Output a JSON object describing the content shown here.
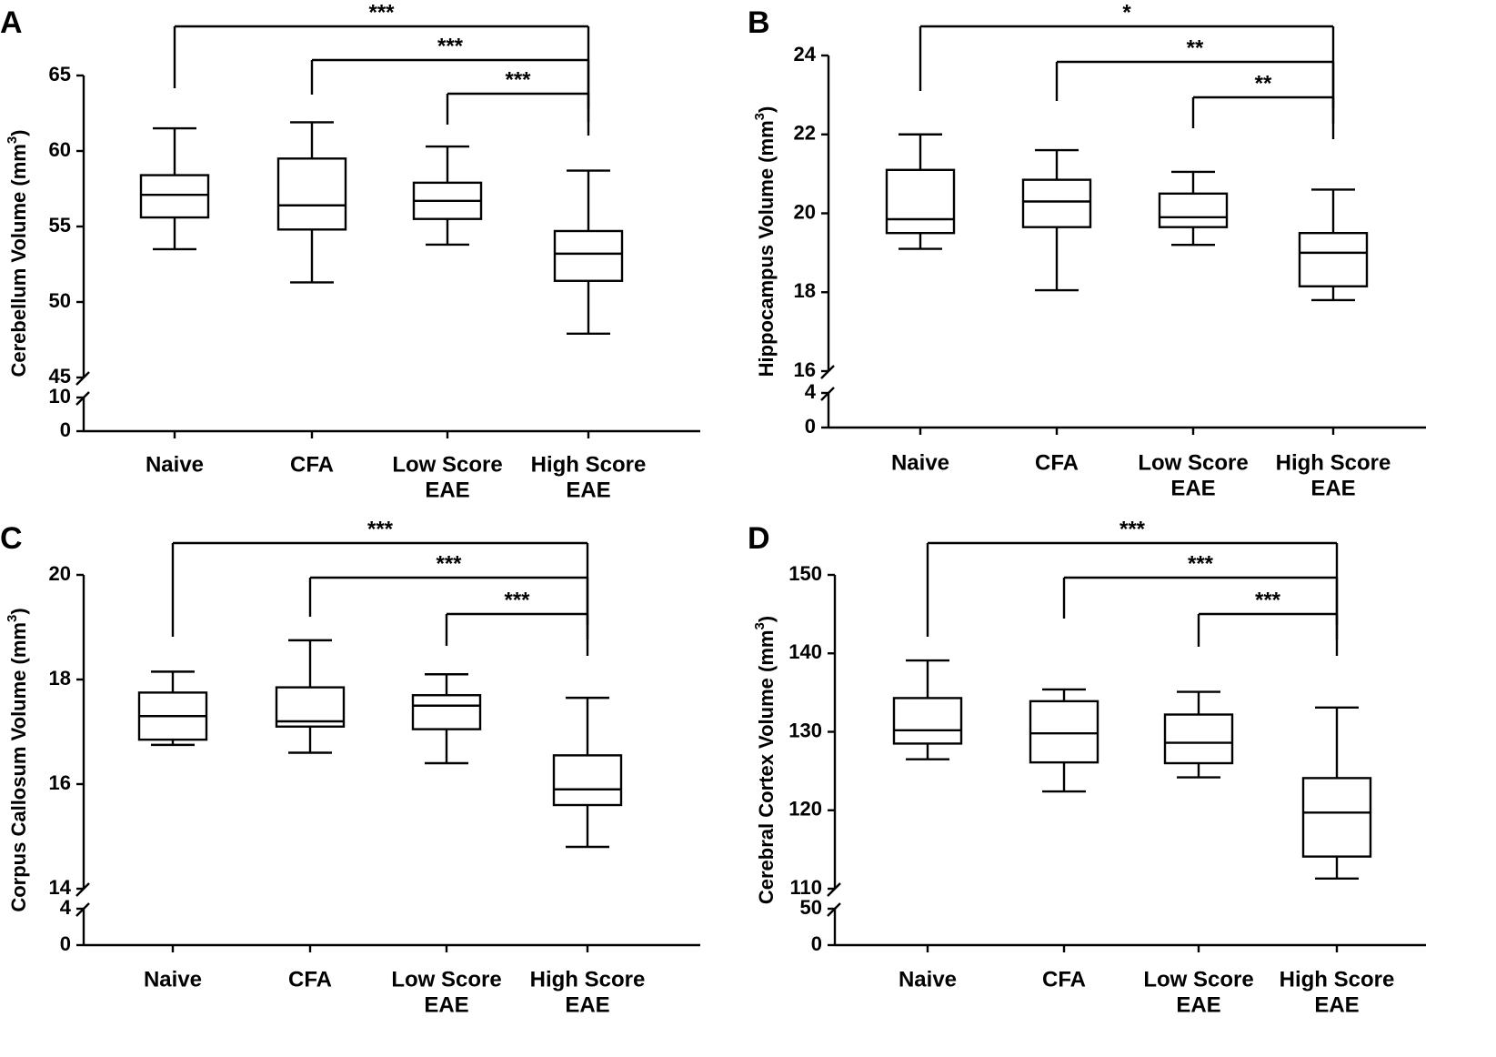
{
  "chart_data": [
    {
      "type": "box",
      "panel": "A",
      "ylabel": "Cerebellum Volume (mm",
      "ylabel_sup": "3",
      "ylabel_close": ")",
      "categories": [
        [
          "Naive"
        ],
        [
          "CFA"
        ],
        [
          "Low Score",
          "EAE"
        ],
        [
          "High Score",
          "EAE"
        ]
      ],
      "ylim": [
        45,
        65
      ],
      "yticks": [
        45,
        50,
        55,
        60,
        65
      ],
      "lower_segment": {
        "ylim": [
          0,
          10
        ],
        "yticks": [
          0,
          10
        ]
      },
      "boxes": [
        {
          "min": 53.5,
          "q1": 55.6,
          "median": 57.1,
          "q3": 58.4,
          "max": 61.5
        },
        {
          "min": 51.3,
          "q1": 54.8,
          "median": 56.4,
          "q3": 59.5,
          "max": 61.9
        },
        {
          "min": 53.8,
          "q1": 55.5,
          "median": 56.7,
          "q3": 57.9,
          "max": 60.3
        },
        {
          "min": 47.9,
          "q1": 51.4,
          "median": 53.2,
          "q3": 54.7,
          "max": 58.7
        }
      ],
      "significance": [
        {
          "from": 0,
          "to": 3,
          "label": "***"
        },
        {
          "from": 1,
          "to": 3,
          "label": "***"
        },
        {
          "from": 2,
          "to": 3,
          "label": "***"
        }
      ]
    },
    {
      "type": "box",
      "panel": "B",
      "ylabel": "Hippocampus Volume (mm",
      "ylabel_sup": "3",
      "ylabel_close": ")",
      "categories": [
        [
          "Naive"
        ],
        [
          "CFA"
        ],
        [
          "Low Score",
          "EAE"
        ],
        [
          "High Score",
          "EAE"
        ]
      ],
      "ylim": [
        16,
        24
      ],
      "yticks": [
        16,
        18,
        20,
        22,
        24
      ],
      "lower_segment": {
        "ylim": [
          0,
          4
        ],
        "yticks": [
          0,
          4
        ]
      },
      "boxes": [
        {
          "min": 19.1,
          "q1": 19.5,
          "median": 19.85,
          "q3": 21.1,
          "max": 22.0
        },
        {
          "min": 18.05,
          "q1": 19.65,
          "median": 20.3,
          "q3": 20.85,
          "max": 21.6
        },
        {
          "min": 19.2,
          "q1": 19.65,
          "median": 19.9,
          "q3": 20.5,
          "max": 21.05
        },
        {
          "min": 17.8,
          "q1": 18.15,
          "median": 19.0,
          "q3": 19.5,
          "max": 20.6
        }
      ],
      "significance": [
        {
          "from": 0,
          "to": 3,
          "label": "*"
        },
        {
          "from": 1,
          "to": 3,
          "label": "**"
        },
        {
          "from": 2,
          "to": 3,
          "label": "**"
        }
      ]
    },
    {
      "type": "box",
      "panel": "C",
      "ylabel": "Corpus Callosum Volume (mm",
      "ylabel_sup": "3",
      "ylabel_close": ")",
      "categories": [
        [
          "Naive"
        ],
        [
          "CFA"
        ],
        [
          "Low Score",
          "EAE"
        ],
        [
          "High Score",
          "EAE"
        ]
      ],
      "ylim": [
        14,
        20
      ],
      "yticks": [
        14,
        16,
        18,
        20
      ],
      "lower_segment": {
        "ylim": [
          0,
          4
        ],
        "yticks": [
          0,
          4
        ]
      },
      "boxes": [
        {
          "min": 16.75,
          "q1": 16.85,
          "median": 17.3,
          "q3": 17.75,
          "max": 18.15
        },
        {
          "min": 16.6,
          "q1": 17.1,
          "median": 17.2,
          "q3": 17.85,
          "max": 18.75
        },
        {
          "min": 16.4,
          "q1": 17.05,
          "median": 17.5,
          "q3": 17.7,
          "max": 18.1
        },
        {
          "min": 14.8,
          "q1": 15.6,
          "median": 15.9,
          "q3": 16.55,
          "max": 17.65
        }
      ],
      "significance": [
        {
          "from": 0,
          "to": 3,
          "label": "***"
        },
        {
          "from": 1,
          "to": 3,
          "label": "***"
        },
        {
          "from": 2,
          "to": 3,
          "label": "***"
        }
      ]
    },
    {
      "type": "box",
      "panel": "D",
      "ylabel": "Cerebral Cortex Volume (mm",
      "ylabel_sup": "3",
      "ylabel_close": ")",
      "categories": [
        [
          "Naive"
        ],
        [
          "CFA"
        ],
        [
          "Low Score",
          "EAE"
        ],
        [
          "High Score",
          "EAE"
        ]
      ],
      "ylim": [
        110,
        150
      ],
      "yticks": [
        110,
        120,
        130,
        140,
        150
      ],
      "lower_segment": {
        "ylim": [
          0,
          50
        ],
        "yticks": [
          0,
          50
        ]
      },
      "boxes": [
        {
          "min": 126.5,
          "q1": 128.5,
          "median": 130.2,
          "q3": 134.3,
          "max": 139.1
        },
        {
          "min": 122.4,
          "q1": 126.1,
          "median": 129.8,
          "q3": 133.9,
          "max": 135.4
        },
        {
          "min": 124.2,
          "q1": 126.0,
          "median": 128.6,
          "q3": 132.2,
          "max": 135.1
        },
        {
          "min": 111.3,
          "q1": 114.1,
          "median": 119.7,
          "q3": 124.1,
          "max": 133.1
        }
      ],
      "significance": [
        {
          "from": 0,
          "to": 3,
          "label": "***"
        },
        {
          "from": 1,
          "to": 3,
          "label": "***"
        },
        {
          "from": 2,
          "to": 3,
          "label": "***"
        }
      ]
    }
  ]
}
